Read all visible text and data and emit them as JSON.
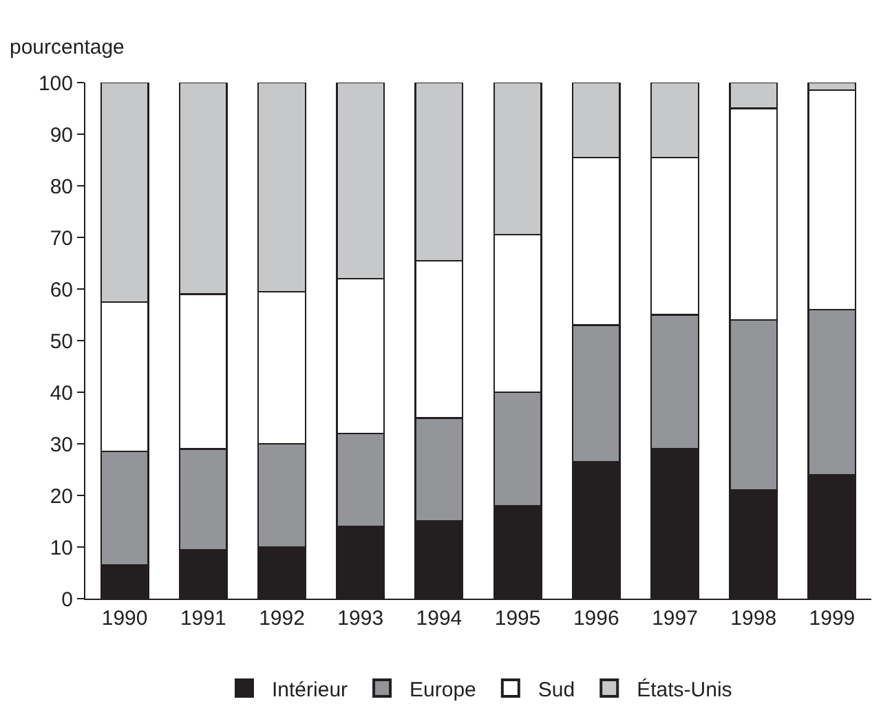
{
  "chart_data": {
    "type": "bar",
    "stacked": true,
    "ylabel": "pourcentage",
    "categories": [
      "1990",
      "1991",
      "1992",
      "1993",
      "1994",
      "1995",
      "1996",
      "1997",
      "1998",
      "1999"
    ],
    "series": [
      {
        "name": "Intérieur",
        "color": "#231f20",
        "values": [
          6.5,
          9.5,
          10,
          14,
          15,
          18,
          26.5,
          29,
          21,
          24
        ]
      },
      {
        "name": "Europe",
        "color": "#939598",
        "values": [
          22,
          19.5,
          20,
          18,
          20,
          22,
          26.5,
          26,
          33,
          32
        ]
      },
      {
        "name": "Sud",
        "color": "#ffffff",
        "values": [
          29,
          30,
          29.5,
          30,
          30.5,
          30.5,
          32.5,
          30.5,
          41,
          42.5
        ]
      },
      {
        "name": "États-Unis",
        "color": "#c7c8ca",
        "values": [
          42.5,
          41,
          40.5,
          38,
          34.5,
          29.5,
          14.5,
          14.5,
          5,
          1.5
        ]
      }
    ],
    "ylim": [
      0,
      100
    ],
    "yticks": [
      0,
      10,
      20,
      30,
      40,
      50,
      60,
      70,
      80,
      90,
      100
    ],
    "legend": "bottom"
  }
}
